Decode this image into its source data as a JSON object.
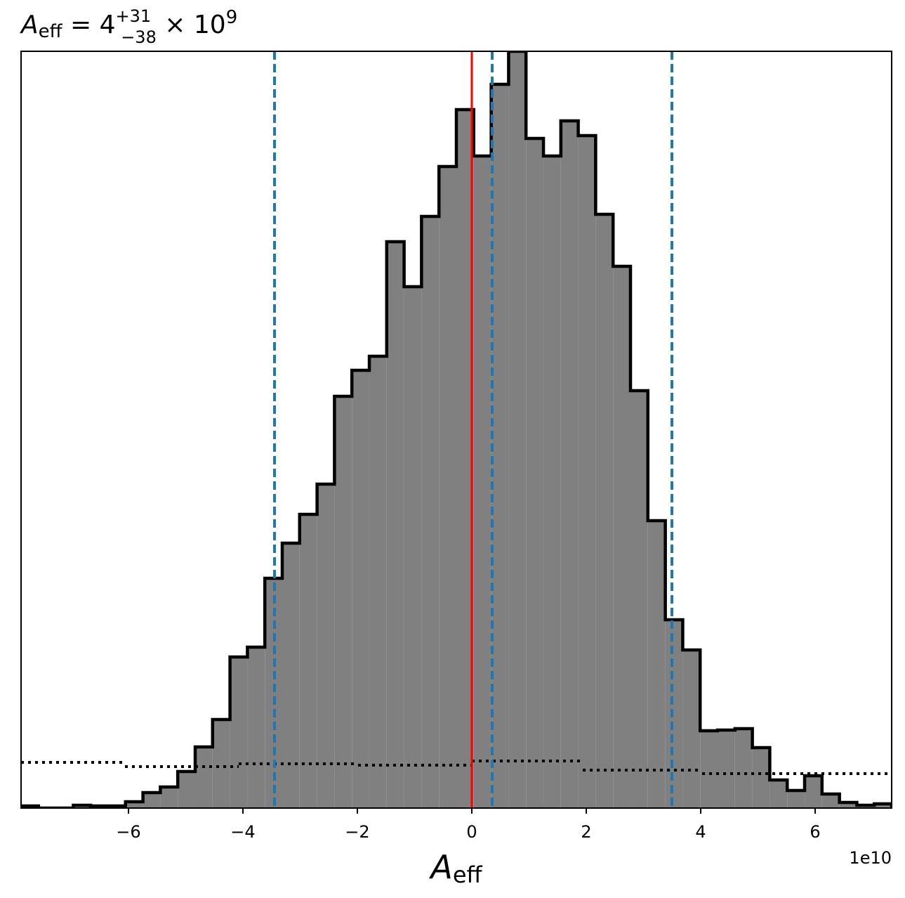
{
  "chart_data": {
    "type": "histogram",
    "title": {
      "symbol": "A",
      "subscript": "eff",
      "middle": " = 4",
      "upper": "+31",
      "lower": "−38",
      "times": " × 10",
      "exponent": "9"
    },
    "xlabel": {
      "symbol": "A",
      "subscript": "eff"
    },
    "x_offset_label": "1e10",
    "bins": [
      -7.877,
      -7.573,
      -7.269,
      -6.964,
      -6.66,
      -6.356,
      -6.052,
      -5.747,
      -5.443,
      -5.139,
      -4.834,
      -4.53,
      -4.226,
      -3.921,
      -3.617,
      -3.313,
      -3.009,
      -2.704,
      -2.4,
      -2.096,
      -1.791,
      -1.487,
      -1.183,
      -0.879,
      -0.574,
      -0.27,
      0.034,
      0.339,
      0.643,
      0.947,
      1.252,
      1.556,
      1.86,
      2.164,
      2.469,
      2.773,
      3.077,
      3.382,
      3.686,
      3.99,
      4.294,
      4.599,
      4.903,
      5.207,
      5.512,
      5.816,
      6.12,
      6.425,
      6.729,
      7.033,
      7.337
    ],
    "counts": [
      3,
      0,
      0,
      4,
      3,
      3,
      9,
      22,
      30,
      52,
      87,
      126,
      215,
      229,
      327,
      377,
      418,
      461,
      586,
      623,
      643,
      806,
      742,
      842,
      913,
      994,
      928,
      1030,
      1077,
      953,
      928,
      978,
      957,
      845,
      771,
      594,
      409,
      268,
      225,
      110,
      111,
      113,
      86,
      40,
      25,
      46,
      20,
      8,
      4,
      6
    ],
    "color": "#808080",
    "edgecolor": "#000000",
    "prior": {
      "edges": [
        -7.877,
        -6.061,
        -4.074,
        -1.988,
        0,
        1.939,
        4.025,
        7.337
      ],
      "values": [
        65,
        59,
        63,
        61,
        67,
        54,
        49
      ],
      "color": "#000000"
    },
    "vlines": [
      {
        "value": -3.448,
        "color": "#1f77b4",
        "style": "dashed"
      },
      {
        "value": 0.356,
        "color": "#1f77b4",
        "style": "dashed"
      },
      {
        "value": 3.497,
        "color": "#1f77b4",
        "style": "dashed"
      },
      {
        "value": 0,
        "color": "#ff0000",
        "style": "solid"
      }
    ],
    "xlim": [
      -7.877,
      7.337
    ],
    "ylim": [
      0,
      1077
    ],
    "xticks": [
      {
        "value": -6,
        "label": "−6"
      },
      {
        "value": -4,
        "label": "−4"
      },
      {
        "value": -2,
        "label": "−2"
      },
      0,
      2,
      4,
      6
    ]
  }
}
